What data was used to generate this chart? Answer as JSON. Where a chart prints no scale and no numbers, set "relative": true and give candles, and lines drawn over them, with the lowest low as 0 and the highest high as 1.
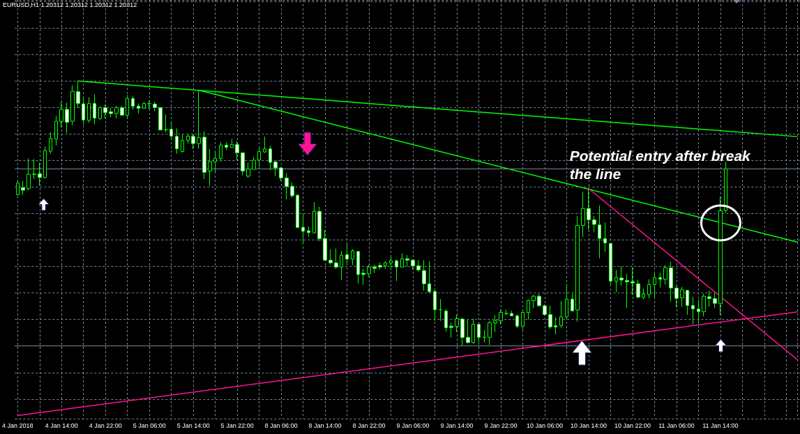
{
  "chart_data": {
    "type": "candlestick",
    "title": "EURUSD,H1 1.20312 1.20312 1.20312 1.20312",
    "relative": true,
    "grid": true,
    "marker": "none",
    "categories": [
      "4 Jan 2018",
      null,
      null,
      null,
      null,
      null,
      null,
      null,
      "4 Jan 14:00",
      null,
      null,
      null,
      null,
      null,
      null,
      null,
      "4 Jan 22:00",
      null,
      null,
      null,
      null,
      null,
      null,
      null,
      "5 Jan 06:00",
      null,
      null,
      null,
      null,
      null,
      null,
      null,
      "5 Jan 14:00",
      null,
      null,
      null,
      null,
      null,
      null,
      null,
      "5 Jan 22:00",
      null,
      null,
      null,
      null,
      null,
      null,
      null,
      "8 Jan 06:00",
      null,
      null,
      null,
      null,
      null,
      null,
      null,
      "8 Jan 14:00",
      null,
      null,
      null,
      null,
      null,
      null,
      null,
      "8 Jan 22:00",
      null,
      null,
      null,
      null,
      null,
      null,
      null,
      "9 Jan 06:00",
      null,
      null,
      null,
      null,
      null,
      null,
      null,
      "9 Jan 14:00",
      null,
      null,
      null,
      null,
      null,
      null,
      null,
      "9 Jan 22:00",
      null,
      null,
      null,
      null,
      null,
      null,
      null,
      "10 Jan 06:00",
      null,
      null,
      null,
      null,
      null,
      null,
      null,
      "10 Jan 14:00",
      null,
      null,
      null,
      null,
      null,
      null,
      null,
      "10 Jan 22:00",
      null,
      null,
      null,
      null,
      null,
      null,
      null,
      "11 Jan 06:00",
      null,
      null,
      null,
      null,
      null,
      null,
      null,
      "11 Jan 14:00",
      null,
      null,
      null,
      null,
      null,
      null,
      null,
      null,
      null,
      null,
      null,
      null,
      null,
      null
    ],
    "ref_lines": [
      {
        "axis": "y",
        "value": 0.668,
        "color": "#778899"
      }
    ],
    "annotations": [
      "Potential entry after break\nthe line"
    ],
    "series": [
      {
        "type": "candlestick",
        "color": "#00ff00",
        "ohlc": [
          [
            0.571,
            0.619,
            0.567,
            0.615
          ],
          [
            0.597,
            0.622,
            0.569,
            0.588
          ],
          [
            0.595,
            0.708,
            0.587,
            0.648
          ],
          [
            0.647,
            0.705,
            0.63,
            0.649
          ],
          [
            0.65,
            0.69,
            0.606,
            0.636
          ],
          [
            0.636,
            0.753,
            0.632,
            0.737
          ],
          [
            0.735,
            0.807,
            0.725,
            0.784
          ],
          [
            0.781,
            0.869,
            0.756,
            0.848
          ],
          [
            0.848,
            0.921,
            0.825,
            0.893
          ],
          [
            0.893,
            0.918,
            0.804,
            0.844
          ],
          [
            0.848,
            0.984,
            0.832,
            0.961
          ],
          [
            0.96,
            1.0,
            0.898,
            0.915
          ],
          [
            0.914,
            0.937,
            0.835,
            0.853
          ],
          [
            0.851,
            0.939,
            0.842,
            0.915
          ],
          [
            0.915,
            0.95,
            0.837,
            0.86
          ],
          [
            0.858,
            0.904,
            0.854,
            0.899
          ],
          [
            0.899,
            0.911,
            0.858,
            0.881
          ],
          [
            0.884,
            0.898,
            0.863,
            0.877
          ],
          [
            0.878,
            0.906,
            0.858,
            0.899
          ],
          [
            0.899,
            0.906,
            0.869,
            0.871
          ],
          [
            0.871,
            0.947,
            0.858,
            0.934
          ],
          [
            0.934,
            0.944,
            0.892,
            0.905
          ],
          [
            0.905,
            0.915,
            0.877,
            0.897
          ],
          [
            0.897,
            0.921,
            0.895,
            0.915
          ],
          [
            0.915,
            0.926,
            0.893,
            0.915
          ],
          [
            0.913,
            0.921,
            0.886,
            0.9
          ],
          [
            0.899,
            0.902,
            0.813,
            0.815
          ],
          [
            0.816,
            0.874,
            0.806,
            0.816
          ],
          [
            0.818,
            0.847,
            0.779,
            0.792
          ],
          [
            0.791,
            0.821,
            0.725,
            0.744
          ],
          [
            0.734,
            0.8,
            0.729,
            0.776
          ],
          [
            0.776,
            0.8,
            0.764,
            0.792
          ],
          [
            0.791,
            0.8,
            0.744,
            0.764
          ],
          [
            0.764,
            0.965,
            0.744,
            0.786
          ],
          [
            0.788,
            0.81,
            0.63,
            0.655
          ],
          [
            0.66,
            0.743,
            0.604,
            0.695
          ],
          [
            0.695,
            0.737,
            0.652,
            0.708
          ],
          [
            0.708,
            0.769,
            0.696,
            0.758
          ],
          [
            0.758,
            0.769,
            0.74,
            0.75
          ],
          [
            0.749,
            0.781,
            0.749,
            0.76
          ],
          [
            0.76,
            0.772,
            0.701,
            0.729
          ],
          [
            0.729,
            0.731,
            0.644,
            0.66
          ],
          [
            0.641,
            0.692,
            0.635,
            0.668
          ],
          [
            0.667,
            0.713,
            0.667,
            0.701
          ],
          [
            0.702,
            0.751,
            0.676,
            0.734
          ],
          [
            0.732,
            0.79,
            0.729,
            0.744
          ],
          [
            0.744,
            0.755,
            0.664,
            0.693
          ],
          [
            0.695,
            0.696,
            0.641,
            0.672
          ],
          [
            0.672,
            0.676,
            0.622,
            0.634
          ],
          [
            0.634,
            0.652,
            0.553,
            0.602
          ],
          [
            0.603,
            0.617,
            0.559,
            0.567
          ],
          [
            0.569,
            0.573,
            0.445,
            0.447
          ],
          [
            0.448,
            0.501,
            0.385,
            0.433
          ],
          [
            0.435,
            0.451,
            0.412,
            0.428
          ],
          [
            0.427,
            0.543,
            0.425,
            0.508
          ],
          [
            0.508,
            0.525,
            0.396,
            0.405
          ],
          [
            0.406,
            0.438,
            0.323,
            0.324
          ],
          [
            0.324,
            0.364,
            0.307,
            0.314
          ],
          [
            0.314,
            0.368,
            0.291,
            0.298
          ],
          [
            0.298,
            0.359,
            0.25,
            0.343
          ],
          [
            0.345,
            0.39,
            0.307,
            0.328
          ],
          [
            0.328,
            0.366,
            0.305,
            0.359
          ],
          [
            0.357,
            0.359,
            0.236,
            0.27
          ],
          [
            0.275,
            0.291,
            0.231,
            0.27
          ],
          [
            0.273,
            0.307,
            0.261,
            0.298
          ],
          [
            0.298,
            0.307,
            0.275,
            0.293
          ],
          [
            0.304,
            0.315,
            0.289,
            0.298
          ],
          [
            0.303,
            0.32,
            0.291,
            0.314
          ],
          [
            0.313,
            0.337,
            0.287,
            0.322
          ],
          [
            0.322,
            0.326,
            0.245,
            0.298
          ],
          [
            0.298,
            0.349,
            0.298,
            0.329
          ],
          [
            0.329,
            0.343,
            0.299,
            0.324
          ],
          [
            0.324,
            0.328,
            0.289,
            0.303
          ],
          [
            0.303,
            0.324,
            0.28,
            0.287
          ],
          [
            0.285,
            0.324,
            0.209,
            0.235
          ],
          [
            0.235,
            0.32,
            0.201,
            0.205
          ],
          [
            0.206,
            0.215,
            0.096,
            0.137
          ],
          [
            0.137,
            0.177,
            0.095,
            0.137
          ],
          [
            0.132,
            0.14,
            0.054,
            0.069
          ],
          [
            0.075,
            0.088,
            0.032,
            0.07
          ],
          [
            0.074,
            0.118,
            0.053,
            0.103
          ],
          [
            0.102,
            0.107,
            0,
            0.032
          ],
          [
            0.033,
            0.101,
            0.009,
            0.013
          ],
          [
            0.013,
            0.103,
            0.009,
            0.082
          ],
          [
            0.082,
            0.084,
            0.013,
            0.033
          ],
          [
            0.033,
            0.06,
            0.013,
            0.033
          ],
          [
            0.033,
            0.095,
            0.004,
            0.088
          ],
          [
            0.087,
            0.116,
            0.053,
            0.096
          ],
          [
            0.095,
            0.137,
            0.082,
            0.127
          ],
          [
            0.123,
            0.138,
            0.116,
            0.123
          ],
          [
            0.123,
            0.133,
            0.113,
            0.114
          ],
          [
            0.114,
            0.12,
            0.068,
            0.075
          ],
          [
            0.075,
            0.138,
            0.061,
            0.127
          ],
          [
            0.126,
            0.175,
            0.1,
            0.172
          ],
          [
            0.171,
            0.194,
            0.142,
            0.188
          ],
          [
            0.188,
            0.196,
            0.149,
            0.152
          ],
          [
            0.152,
            0.158,
            0.114,
            0.119
          ],
          [
            0.119,
            0.152,
            0.065,
            0.072
          ],
          [
            0.077,
            0.109,
            0.044,
            0.072
          ],
          [
            0.077,
            0.17,
            0.068,
            0.11
          ],
          [
            0.11,
            0.232,
            0.102,
            0.177
          ],
          [
            0.177,
            0.196,
            0.13,
            0.133
          ],
          [
            0.136,
            0.49,
            0.092,
            0.455
          ],
          [
            0.455,
            0.582,
            0.412,
            0.519
          ],
          [
            0.519,
            0.594,
            0.438,
            0.476
          ],
          [
            0.476,
            0.49,
            0.429,
            0.459
          ],
          [
            0.457,
            0.53,
            0.331,
            0.406
          ],
          [
            0.405,
            0.466,
            0.356,
            0.389
          ],
          [
            0.387,
            0.39,
            0.228,
            0.245
          ],
          [
            0.245,
            0.287,
            0.203,
            0.258
          ],
          [
            0.257,
            0.301,
            0.228,
            0.249
          ],
          [
            0.247,
            0.272,
            0.144,
            0.242
          ],
          [
            0.243,
            0.296,
            0.193,
            0.238
          ],
          [
            0.235,
            0.25,
            0.18,
            0.184
          ],
          [
            0.184,
            0.217,
            0.177,
            0.196
          ],
          [
            0.194,
            0.252,
            0.18,
            0.232
          ],
          [
            0.232,
            0.276,
            0.18,
            0.258
          ],
          [
            0.258,
            0.276,
            0.221,
            0.252
          ],
          [
            0.252,
            0.305,
            0.232,
            0.295
          ],
          [
            0.295,
            0.317,
            0.168,
            0.219
          ],
          [
            0.219,
            0.228,
            0.147,
            0.18
          ],
          [
            0.182,
            0.223,
            0.147,
            0.212
          ],
          [
            0.21,
            0.212,
            0.118,
            0.153
          ],
          [
            0.153,
            0.186,
            0.081,
            0.14
          ],
          [
            0.14,
            0.175,
            0.083,
            0.13
          ],
          [
            0.13,
            0.197,
            0.112,
            0.188
          ],
          [
            0.186,
            0.209,
            0.149,
            0.179
          ],
          [
            0.179,
            0.2,
            0.144,
            0.161
          ],
          [
            0.16,
            0.563,
            0.117,
            0.511
          ],
          [
            0.511,
            0.695,
            0.502,
            0.668
          ],
          null,
          null,
          null,
          null,
          null,
          null,
          null,
          null,
          null,
          null,
          null,
          null,
          null
        ]
      },
      {
        "type": "line",
        "color": "#00ff00",
        "values": [
          null,
          null,
          null,
          null,
          null,
          null,
          null,
          null,
          null,
          null,
          null,
          1.0,
          null,
          null,
          null,
          null,
          null,
          null,
          null,
          null,
          null,
          null,
          null,
          null,
          null,
          null,
          null,
          null,
          null,
          null,
          null,
          null,
          null,
          null,
          null,
          null,
          null,
          null,
          null,
          null,
          null,
          null,
          null,
          null,
          null,
          null,
          null,
          null,
          null,
          null,
          null,
          null,
          null,
          null,
          null,
          null,
          null,
          null,
          null,
          null,
          null,
          null,
          null,
          null,
          null,
          null,
          null,
          null,
          null,
          null,
          null,
          null,
          null,
          null,
          null,
          null,
          null,
          null,
          null,
          null,
          null,
          null,
          null,
          null,
          null,
          null,
          null,
          null,
          null,
          null,
          null,
          null,
          null,
          null,
          null,
          null,
          null,
          null,
          null,
          null,
          null,
          null,
          null,
          null,
          null,
          null,
          null,
          null,
          null,
          null,
          null,
          null,
          null,
          null,
          null,
          null,
          null,
          null,
          null,
          null,
          null,
          null,
          null,
          null,
          null,
          null,
          null,
          null,
          null,
          null,
          null,
          null,
          null,
          null,
          null,
          null,
          null,
          null,
          null,
          null,
          null,
          null,
          0.79
        ]
      },
      {
        "type": "line",
        "color": "#00ff00",
        "values": [
          null,
          null,
          null,
          null,
          null,
          null,
          null,
          null,
          null,
          null,
          null,
          null,
          null,
          null,
          null,
          null,
          null,
          null,
          null,
          null,
          null,
          null,
          null,
          null,
          null,
          null,
          null,
          null,
          null,
          null,
          null,
          null,
          null,
          0.965,
          null,
          null,
          null,
          null,
          null,
          null,
          null,
          null,
          null,
          null,
          null,
          null,
          null,
          null,
          null,
          null,
          null,
          null,
          null,
          null,
          null,
          null,
          null,
          null,
          null,
          null,
          null,
          null,
          null,
          null,
          null,
          null,
          null,
          null,
          null,
          null,
          null,
          null,
          null,
          null,
          null,
          null,
          null,
          null,
          null,
          null,
          null,
          null,
          null,
          null,
          null,
          null,
          null,
          null,
          null,
          null,
          null,
          null,
          null,
          null,
          null,
          null,
          null,
          null,
          null,
          null,
          null,
          null,
          null,
          null,
          null,
          null,
          null,
          null,
          null,
          null,
          null,
          null,
          null,
          null,
          null,
          null,
          null,
          null,
          null,
          null,
          null,
          null,
          null,
          null,
          null,
          null,
          null,
          null,
          null,
          null,
          null,
          null,
          null,
          null,
          null,
          null,
          null,
          null,
          null,
          null,
          null,
          null,
          0.392
        ]
      },
      {
        "type": "line",
        "color": "#ff1493",
        "values": [
          null,
          null,
          null,
          null,
          null,
          null,
          null,
          null,
          null,
          null,
          null,
          null,
          null,
          null,
          null,
          null,
          null,
          null,
          null,
          null,
          null,
          null,
          null,
          null,
          null,
          null,
          null,
          null,
          null,
          null,
          null,
          null,
          null,
          null,
          null,
          null,
          null,
          null,
          null,
          null,
          null,
          null,
          null,
          null,
          null,
          null,
          null,
          null,
          null,
          null,
          null,
          null,
          null,
          null,
          null,
          null,
          null,
          null,
          null,
          null,
          null,
          null,
          null,
          null,
          null,
          null,
          null,
          null,
          null,
          null,
          null,
          null,
          null,
          null,
          null,
          null,
          null,
          null,
          null,
          null,
          null,
          null,
          null,
          null,
          null,
          null,
          null,
          null,
          null,
          null,
          null,
          null,
          null,
          null,
          null,
          null,
          null,
          null,
          null,
          null,
          null,
          null,
          null,
          null,
          0.594,
          null,
          null,
          null,
          null,
          null,
          null,
          null,
          null,
          null,
          null,
          null,
          null,
          null,
          null,
          null,
          null,
          null,
          null,
          null,
          null,
          null,
          null,
          null,
          null,
          null,
          null,
          null,
          null,
          null,
          null,
          null,
          null,
          null,
          null,
          null,
          null,
          null,
          -0.051
        ]
      },
      {
        "type": "line",
        "color": "#ff1493",
        "values": [
          -0.262,
          null,
          null,
          null,
          null,
          null,
          null,
          null,
          null,
          null,
          null,
          null,
          null,
          null,
          null,
          null,
          null,
          null,
          null,
          null,
          null,
          null,
          null,
          null,
          null,
          null,
          null,
          null,
          null,
          null,
          null,
          null,
          null,
          null,
          null,
          null,
          null,
          null,
          null,
          null,
          null,
          null,
          null,
          null,
          null,
          null,
          null,
          null,
          null,
          null,
          null,
          null,
          null,
          null,
          null,
          null,
          null,
          null,
          null,
          null,
          null,
          null,
          null,
          null,
          null,
          null,
          null,
          null,
          null,
          null,
          null,
          null,
          null,
          null,
          null,
          null,
          null,
          null,
          null,
          null,
          null,
          null,
          null,
          null,
          null,
          null,
          null,
          null,
          null,
          null,
          null,
          null,
          null,
          null,
          null,
          null,
          null,
          null,
          null,
          null,
          null,
          null,
          null,
          null,
          null,
          null,
          null,
          null,
          null,
          null,
          null,
          null,
          null,
          null,
          null,
          null,
          null,
          null,
          null,
          null,
          null,
          null,
          null,
          null,
          null,
          null,
          null,
          null,
          null,
          null,
          null,
          null,
          null,
          null,
          null,
          null,
          null,
          null,
          null,
          null,
          null,
          null,
          0.129
        ]
      }
    ]
  }
}
